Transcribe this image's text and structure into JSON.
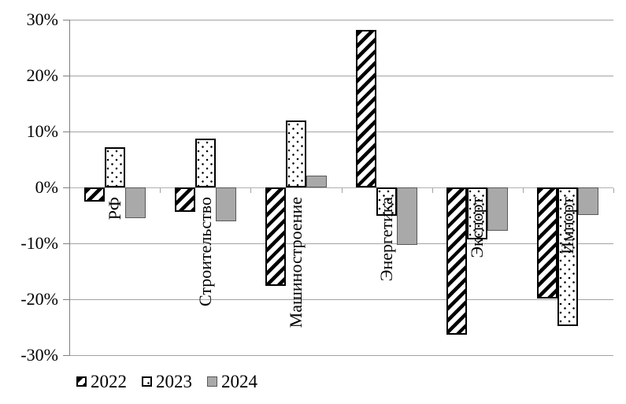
{
  "chart_data": {
    "type": "bar",
    "title": "",
    "categories": [
      "РФ",
      "Строительство",
      "Машиностроение",
      "Энергетика",
      "Экспорт",
      "Импорт"
    ],
    "series": [
      {
        "name": "2022",
        "pattern": "diagonal-hatch",
        "fill": "#ffffff",
        "stroke": "#000000",
        "values": [
          -2.5,
          -4.3,
          -17.6,
          28.2,
          -26.3,
          -19.8
        ]
      },
      {
        "name": "2023",
        "pattern": "dots",
        "fill": "#ffffff",
        "stroke": "#000000",
        "values": [
          7.2,
          8.8,
          12.0,
          -5.0,
          -9.3,
          -24.8
        ]
      },
      {
        "name": "2024",
        "pattern": "solid",
        "fill": "#a9a9a9",
        "stroke": "#595959",
        "values": [
          -5.5,
          -6.1,
          2.1,
          -10.3,
          -7.7,
          -4.9
        ]
      }
    ],
    "ylim": [
      -30,
      30
    ],
    "ytick_step": 10,
    "ytick_labels": [
      "30%",
      "20%",
      "10%",
      "0%",
      "-10%",
      "-20%",
      "-30%"
    ],
    "xlabel": "",
    "ylabel": "",
    "grid": true,
    "legend_position": "bottom-left",
    "colors": {
      "gridline": "#a3a3a3",
      "zero_line": "#b0b0b0",
      "axis": "#7f7f7f",
      "background": "#ffffff",
      "text": "#000000"
    }
  }
}
